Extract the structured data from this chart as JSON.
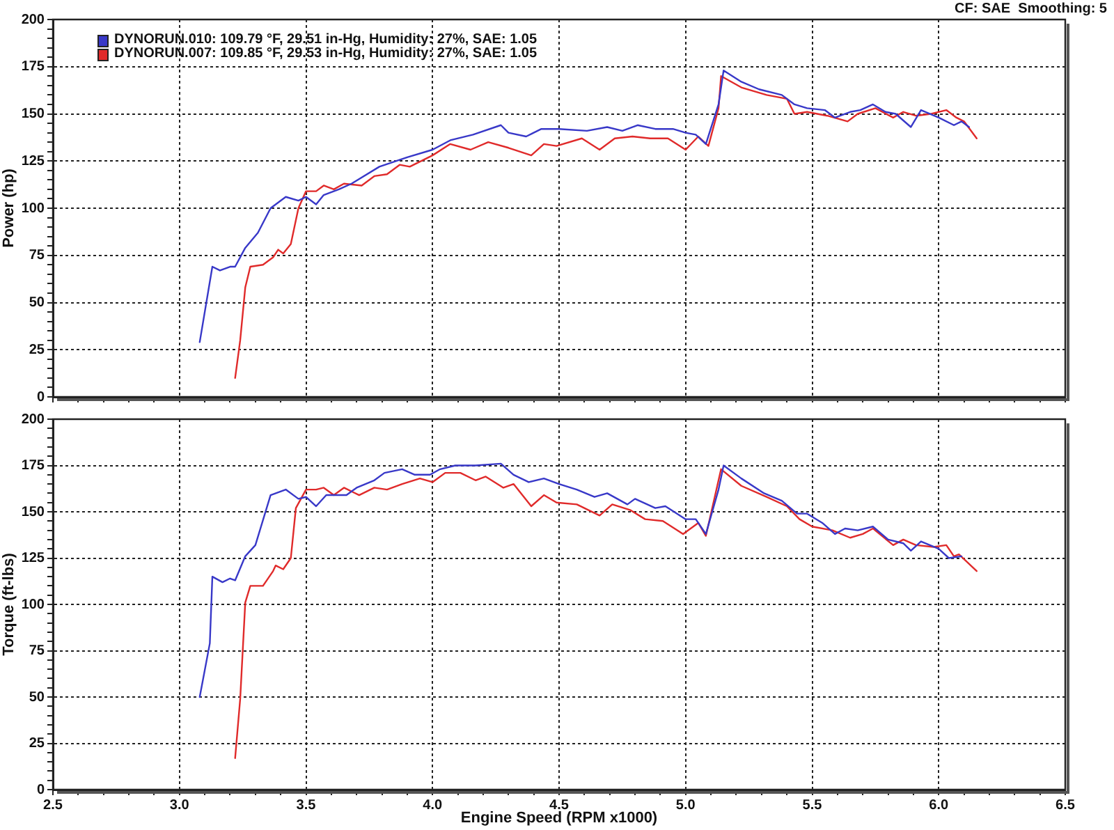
{
  "chart_data": [
    {
      "type": "line",
      "ylabel": "Power (hp)",
      "annotations": [
        "CF: SAE  Smoothing: 5"
      ],
      "xlim": [
        2.5,
        6.5
      ],
      "xticks": [
        2.5,
        {
          "value": 2.6,
          "label": null
        },
        {
          "value": 2.7,
          "label": null
        },
        {
          "value": 2.8,
          "label": null
        },
        {
          "value": 2.9,
          "label": null
        },
        3,
        {
          "value": 3.1,
          "label": null
        },
        {
          "value": 3.2,
          "label": null
        },
        {
          "value": 3.3,
          "label": null
        },
        {
          "value": 3.4,
          "label": null
        },
        3.5,
        {
          "value": 3.6,
          "label": null
        },
        {
          "value": 3.7,
          "label": null
        },
        {
          "value": 3.8,
          "label": null
        },
        {
          "value": 3.9,
          "label": null
        },
        4,
        {
          "value": 4.1,
          "label": null
        },
        {
          "value": 4.2,
          "label": null
        },
        {
          "value": 4.3,
          "label": null
        },
        {
          "value": 4.4,
          "label": null
        },
        4.5,
        {
          "value": 4.6,
          "label": null
        },
        {
          "value": 4.7,
          "label": null
        },
        {
          "value": 4.8,
          "label": null
        },
        {
          "value": 4.9,
          "label": null
        },
        5,
        {
          "value": 5.1,
          "label": null
        },
        {
          "value": 5.2,
          "label": null
        },
        {
          "value": 5.3,
          "label": null
        },
        {
          "value": 5.4,
          "label": null
        },
        5.5,
        {
          "value": 5.6,
          "label": null
        },
        {
          "value": 5.7,
          "label": null
        },
        {
          "value": 5.8,
          "label": null
        },
        {
          "value": 5.9,
          "label": null
        },
        6,
        {
          "value": 6.1,
          "label": null
        },
        {
          "value": 6.2,
          "label": null
        },
        {
          "value": 6.3,
          "label": null
        },
        {
          "value": 6.4,
          "label": null
        },
        6.5
      ],
      "ylim": [
        0,
        200
      ],
      "yticks": [
        0,
        {
          "value": 5,
          "label": null
        },
        {
          "value": 10,
          "label": null
        },
        {
          "value": 15,
          "label": null
        },
        {
          "value": 20,
          "label": null
        },
        25,
        {
          "value": 30,
          "label": null
        },
        {
          "value": 35,
          "label": null
        },
        {
          "value": 40,
          "label": null
        },
        {
          "value": 45,
          "label": null
        },
        50,
        {
          "value": 55,
          "label": null
        },
        {
          "value": 60,
          "label": null
        },
        {
          "value": 65,
          "label": null
        },
        {
          "value": 70,
          "label": null
        },
        75,
        {
          "value": 80,
          "label": null
        },
        {
          "value": 85,
          "label": null
        },
        {
          "value": 90,
          "label": null
        },
        {
          "value": 95,
          "label": null
        },
        100,
        {
          "value": 105,
          "label": null
        },
        {
          "value": 110,
          "label": null
        },
        {
          "value": 115,
          "label": null
        },
        {
          "value": 120,
          "label": null
        },
        125,
        {
          "value": 130,
          "label": null
        },
        {
          "value": 135,
          "label": null
        },
        {
          "value": 140,
          "label": null
        },
        {
          "value": 145,
          "label": null
        },
        150,
        {
          "value": 155,
          "label": null
        },
        {
          "value": 160,
          "label": null
        },
        {
          "value": 165,
          "label": null
        },
        {
          "value": 170,
          "label": null
        },
        175,
        {
          "value": 180,
          "label": null
        },
        {
          "value": 185,
          "label": null
        },
        {
          "value": 190,
          "label": null
        },
        {
          "value": 195,
          "label": null
        },
        200
      ],
      "tick_labels": "y",
      "grid": true,
      "legend": "top left",
      "marker": "none",
      "line_style": "solid",
      "series": [
        {
          "name": "DYNORUN.010: 109.79 °F, 29.51 in-Hg, Humidity: 27%, SAE: 1.05",
          "color": "#3838c8",
          "x": [
            3.08,
            3.13,
            3.16,
            3.2,
            3.22,
            3.26,
            3.31,
            3.36,
            3.42,
            3.47,
            3.5,
            3.54,
            3.57,
            3.63,
            3.68,
            3.79,
            3.9,
            4.0,
            4.07,
            4.16,
            4.27,
            4.3,
            4.37,
            4.43,
            4.5,
            4.61,
            4.69,
            4.75,
            4.81,
            4.88,
            4.95,
            5.0,
            5.04,
            5.08,
            5.13,
            5.15,
            5.22,
            5.29,
            5.38,
            5.43,
            5.48,
            5.55,
            5.59,
            5.65,
            5.69,
            5.74,
            5.79,
            5.83,
            5.89,
            5.93,
            6.0,
            6.06,
            6.09,
            6.12
          ],
          "values": [
            29,
            69,
            67,
            69,
            69,
            79,
            87,
            100,
            106,
            104,
            106,
            102,
            107,
            110,
            113,
            122,
            127,
            131,
            136,
            139,
            144,
            140,
            138,
            142,
            142,
            141,
            143,
            141,
            144,
            142,
            142,
            140,
            139,
            134,
            155,
            173,
            167,
            163,
            160,
            155,
            153,
            152,
            148,
            151,
            152,
            155,
            151,
            150,
            143,
            152,
            148,
            144,
            146,
            143
          ]
        },
        {
          "name": "DYNORUN.007: 109.85 °F, 29.53 in-Hg, Humidity: 27%, SAE: 1.05",
          "color": "#e02a2a",
          "x": [
            3.22,
            3.24,
            3.26,
            3.28,
            3.33,
            3.37,
            3.39,
            3.41,
            3.44,
            3.47,
            3.5,
            3.54,
            3.57,
            3.61,
            3.65,
            3.72,
            3.77,
            3.82,
            3.87,
            3.91,
            4.0,
            4.07,
            4.15,
            4.22,
            4.3,
            4.39,
            4.44,
            4.49,
            4.59,
            4.66,
            4.72,
            4.79,
            4.86,
            4.93,
            5.0,
            5.05,
            5.09,
            5.13,
            5.14,
            5.22,
            5.32,
            5.4,
            5.43,
            5.48,
            5.56,
            5.64,
            5.68,
            5.75,
            5.82,
            5.86,
            5.91,
            5.97,
            6.03,
            6.07,
            6.1,
            6.15
          ],
          "values": [
            10,
            30,
            58,
            69,
            70,
            74,
            78,
            76,
            81,
            100,
            109,
            109,
            112,
            110,
            113,
            112,
            117,
            118,
            123,
            122,
            128,
            134,
            131,
            135,
            132,
            128,
            134,
            133,
            137,
            131,
            137,
            138,
            137,
            137,
            131,
            138,
            133,
            153,
            170,
            164,
            160,
            158,
            150,
            151,
            149,
            146,
            150,
            153,
            148,
            151,
            149,
            150,
            152,
            148,
            146,
            137
          ]
        }
      ]
    },
    {
      "type": "line",
      "xlabel": "Engine Speed (RPM x1000)",
      "ylabel": "Torque (ft-lbs)",
      "xlim": [
        2.5,
        6.5
      ],
      "xticks": [
        2.5,
        {
          "value": 2.6,
          "label": null
        },
        {
          "value": 2.7,
          "label": null
        },
        {
          "value": 2.8,
          "label": null
        },
        {
          "value": 2.9,
          "label": null
        },
        {
          "value": 3,
          "label": "3.0"
        },
        {
          "value": 3.1,
          "label": null
        },
        {
          "value": 3.2,
          "label": null
        },
        {
          "value": 3.3,
          "label": null
        },
        {
          "value": 3.4,
          "label": null
        },
        3.5,
        {
          "value": 3.6,
          "label": null
        },
        {
          "value": 3.7,
          "label": null
        },
        {
          "value": 3.8,
          "label": null
        },
        {
          "value": 3.9,
          "label": null
        },
        {
          "value": 4,
          "label": "4.0"
        },
        {
          "value": 4.1,
          "label": null
        },
        {
          "value": 4.2,
          "label": null
        },
        {
          "value": 4.3,
          "label": null
        },
        {
          "value": 4.4,
          "label": null
        },
        4.5,
        {
          "value": 4.6,
          "label": null
        },
        {
          "value": 4.7,
          "label": null
        },
        {
          "value": 4.8,
          "label": null
        },
        {
          "value": 4.9,
          "label": null
        },
        {
          "value": 5,
          "label": "5.0"
        },
        {
          "value": 5.1,
          "label": null
        },
        {
          "value": 5.2,
          "label": null
        },
        {
          "value": 5.3,
          "label": null
        },
        {
          "value": 5.4,
          "label": null
        },
        5.5,
        {
          "value": 5.6,
          "label": null
        },
        {
          "value": 5.7,
          "label": null
        },
        {
          "value": 5.8,
          "label": null
        },
        {
          "value": 5.9,
          "label": null
        },
        {
          "value": 6,
          "label": "6.0"
        },
        {
          "value": 6.1,
          "label": null
        },
        {
          "value": 6.2,
          "label": null
        },
        {
          "value": 6.3,
          "label": null
        },
        {
          "value": 6.4,
          "label": null
        },
        6.5
      ],
      "ylim": [
        0,
        200
      ],
      "yticks": [
        0,
        {
          "value": 5,
          "label": null
        },
        {
          "value": 10,
          "label": null
        },
        {
          "value": 15,
          "label": null
        },
        {
          "value": 20,
          "label": null
        },
        25,
        {
          "value": 30,
          "label": null
        },
        {
          "value": 35,
          "label": null
        },
        {
          "value": 40,
          "label": null
        },
        {
          "value": 45,
          "label": null
        },
        50,
        {
          "value": 55,
          "label": null
        },
        {
          "value": 60,
          "label": null
        },
        {
          "value": 65,
          "label": null
        },
        {
          "value": 70,
          "label": null
        },
        75,
        {
          "value": 80,
          "label": null
        },
        {
          "value": 85,
          "label": null
        },
        {
          "value": 90,
          "label": null
        },
        {
          "value": 95,
          "label": null
        },
        100,
        {
          "value": 105,
          "label": null
        },
        {
          "value": 110,
          "label": null
        },
        {
          "value": 115,
          "label": null
        },
        {
          "value": 120,
          "label": null
        },
        125,
        {
          "value": 130,
          "label": null
        },
        {
          "value": 135,
          "label": null
        },
        {
          "value": 140,
          "label": null
        },
        {
          "value": 145,
          "label": null
        },
        150,
        {
          "value": 155,
          "label": null
        },
        {
          "value": 160,
          "label": null
        },
        {
          "value": 165,
          "label": null
        },
        {
          "value": 170,
          "label": null
        },
        175,
        {
          "value": 180,
          "label": null
        },
        {
          "value": 185,
          "label": null
        },
        {
          "value": 190,
          "label": null
        },
        {
          "value": 195,
          "label": null
        },
        200
      ],
      "grid": true,
      "marker": "none",
      "line_style": "solid",
      "series": [
        {
          "color": "#3838c8",
          "x": [
            3.08,
            3.12,
            3.13,
            3.17,
            3.2,
            3.22,
            3.26,
            3.3,
            3.36,
            3.42,
            3.47,
            3.5,
            3.54,
            3.58,
            3.66,
            3.7,
            3.77,
            3.81,
            3.88,
            3.93,
            3.99,
            4.03,
            4.09,
            4.17,
            4.27,
            4.32,
            4.38,
            4.44,
            4.5,
            4.57,
            4.64,
            4.69,
            4.77,
            4.8,
            4.88,
            4.92,
            5.0,
            5.04,
            5.08,
            5.13,
            5.15,
            5.22,
            5.31,
            5.38,
            5.44,
            5.48,
            5.54,
            5.59,
            5.63,
            5.68,
            5.74,
            5.8,
            5.86,
            5.89,
            5.93,
            6.0,
            6.04,
            6.09
          ],
          "values": [
            50,
            79,
            115,
            112,
            114,
            113,
            126,
            132,
            159,
            162,
            157,
            158,
            153,
            159,
            159,
            163,
            167,
            171,
            173,
            170,
            170,
            173,
            175,
            175,
            176,
            170,
            166,
            168,
            165,
            162,
            158,
            160,
            154,
            157,
            152,
            153,
            146,
            146,
            138,
            162,
            175,
            168,
            160,
            156,
            149,
            149,
            144,
            138,
            141,
            140,
            142,
            135,
            133,
            129,
            134,
            130,
            125,
            126
          ]
        },
        {
          "color": "#e02a2a",
          "x": [
            3.22,
            3.24,
            3.26,
            3.28,
            3.33,
            3.37,
            3.38,
            3.41,
            3.44,
            3.46,
            3.5,
            3.54,
            3.57,
            3.61,
            3.65,
            3.71,
            3.77,
            3.82,
            3.88,
            3.95,
            4.0,
            4.05,
            4.11,
            4.17,
            4.21,
            4.28,
            4.32,
            4.39,
            4.44,
            4.49,
            4.57,
            4.66,
            4.71,
            4.78,
            4.84,
            4.91,
            4.99,
            5.05,
            5.08,
            5.14,
            5.22,
            5.32,
            5.4,
            5.45,
            5.5,
            5.58,
            5.65,
            5.7,
            5.74,
            5.82,
            5.86,
            5.91,
            5.98,
            6.03,
            6.06,
            6.08,
            6.15
          ],
          "values": [
            17,
            49,
            101,
            110,
            110,
            118,
            121,
            119,
            125,
            152,
            162,
            162,
            163,
            159,
            163,
            159,
            163,
            162,
            165,
            168,
            166,
            171,
            171,
            167,
            169,
            163,
            165,
            153,
            159,
            155,
            154,
            148,
            154,
            151,
            146,
            145,
            138,
            144,
            137,
            173,
            164,
            158,
            153,
            146,
            142,
            140,
            136,
            138,
            141,
            132,
            135,
            132,
            131,
            132,
            126,
            127,
            118
          ]
        }
      ]
    }
  ]
}
